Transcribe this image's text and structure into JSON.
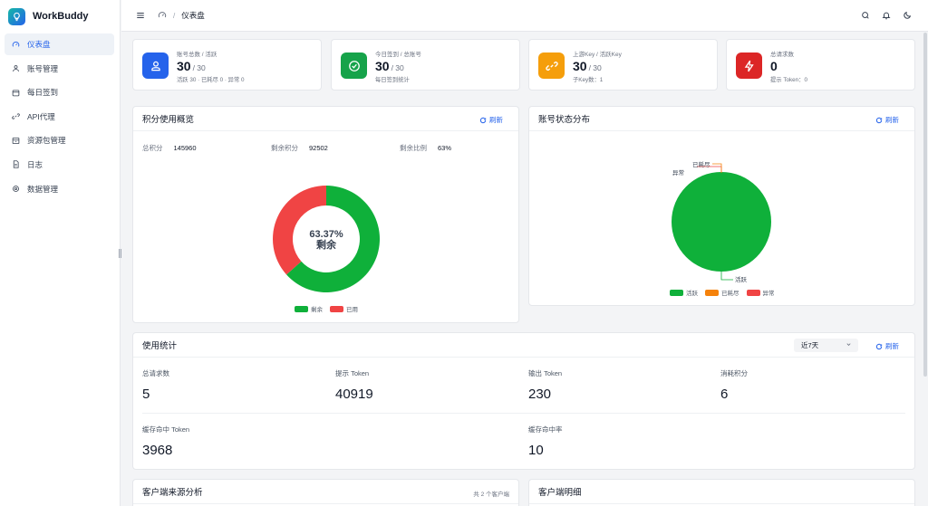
{
  "app": {
    "name": "WorkBuddy"
  },
  "sidebar": {
    "items": [
      {
        "label": "仪表盘",
        "icon": "gauge-icon",
        "active": true
      },
      {
        "label": "账号管理",
        "icon": "user-icon",
        "active": false
      },
      {
        "label": "每日签到",
        "icon": "calendar-icon",
        "active": false
      },
      {
        "label": "API代理",
        "icon": "link-icon",
        "active": false
      },
      {
        "label": "资源包管理",
        "icon": "package-icon",
        "active": false
      },
      {
        "label": "日志",
        "icon": "document-icon",
        "active": false
      },
      {
        "label": "数据管理",
        "icon": "database-icon",
        "active": false
      }
    ]
  },
  "header": {
    "breadcrumb": "仪表盘",
    "separator": "/"
  },
  "stats": [
    {
      "label": "账号总数 / 活跃",
      "value": "30",
      "total": "/ 30",
      "sub": "活跃 30 · 已耗尽 0 · 异常 0",
      "color": "#2563eb",
      "icon": "user-icon"
    },
    {
      "label": "今日签到 / 总账号",
      "value": "30",
      "total": "/ 30",
      "sub": "每日签到统计",
      "color": "#16a34a",
      "icon": "check-circle-icon"
    },
    {
      "label": "上游Key / 活跃Key",
      "value": "30",
      "total": "/ 30",
      "sub": "子Key数：1",
      "color": "#f59e0b",
      "icon": "link-icon"
    },
    {
      "label": "总请求数",
      "value": "0",
      "total": "",
      "sub": "提示 Token：0",
      "color": "#dc2626",
      "icon": "lightning-icon"
    }
  ],
  "overview": {
    "title": "积分使用概览",
    "refresh": "刷新",
    "total_label": "总积分",
    "total_value": "145960",
    "remaining_label": "剩余积分",
    "remaining_value": "92502",
    "ratio_label": "剩余比例",
    "ratio_value": "63%",
    "center_pct": "63.37%",
    "center_label": "剩余",
    "legend": [
      {
        "label": "剩余",
        "color": "#0fb03a"
      },
      {
        "label": "已用",
        "color": "#f04444"
      }
    ]
  },
  "status": {
    "title": "账号状态分布",
    "refresh": "刷新",
    "callouts": {
      "active": "活跃",
      "exhausted": "已耗尽",
      "abnormal": "异常"
    },
    "legend": [
      {
        "label": "活跃",
        "color": "#0fb03a"
      },
      {
        "label": "已耗尽",
        "color": "#f5820b"
      },
      {
        "label": "异常",
        "color": "#f04444"
      }
    ]
  },
  "usage": {
    "title": "使用统计",
    "range": "近7天",
    "refresh": "刷新",
    "metrics": [
      {
        "label": "总请求数",
        "value": "5"
      },
      {
        "label": "提示 Token",
        "value": "40919"
      },
      {
        "label": "输出 Token",
        "value": "230"
      },
      {
        "label": "消耗积分",
        "value": "6"
      },
      {
        "label": "缓存命中 Token",
        "value": "3968"
      },
      {
        "label": "缓存命中率",
        "value": "10"
      }
    ]
  },
  "client_source": {
    "title": "客户端来源分析",
    "count": "共 2 个客户端"
  },
  "client_detail": {
    "title": "客户端明细"
  },
  "chart_data": [
    {
      "type": "pie",
      "categories": [
        "剩余",
        "已用"
      ],
      "values": [
        63.37,
        36.63
      ],
      "title": "积分使用概览",
      "donut": true,
      "center_text": "63.37% 剩余",
      "legend": "bottom"
    },
    {
      "type": "pie",
      "categories": [
        "活跃",
        "已耗尽",
        "异常"
      ],
      "values": [
        30,
        0,
        0
      ],
      "title": "账号状态分布",
      "legend": "bottom"
    }
  ]
}
